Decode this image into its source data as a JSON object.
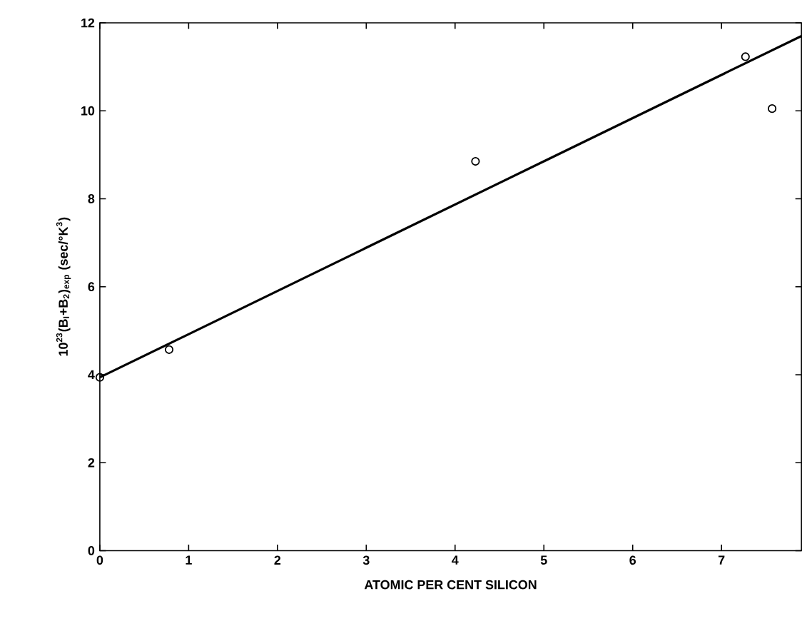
{
  "chart_data": {
    "type": "scatter",
    "xlabel": "ATOMIC PER CENT SILICON",
    "ylabel": "10$^{23}$(B$_{I}$+B$_{2}$)$_{exp}$  (sec/°K$^{3}$)",
    "xlim": [
      0,
      7.9
    ],
    "ylim": [
      0,
      12
    ],
    "xticks": [
      0,
      1,
      2,
      3,
      4,
      5,
      6,
      7
    ],
    "yticks": [
      0,
      2,
      4,
      6,
      8,
      10,
      12
    ],
    "series": [
      {
        "marker": "circle",
        "color": "#000000",
        "x": [
          0,
          0.78,
          4.23,
          7.27,
          7.57
        ],
        "values": [
          3.94,
          4.57,
          8.85,
          11.23,
          10.05
        ]
      },
      {
        "type": "line",
        "marker": "none",
        "line_style": "solid",
        "color": "#000000",
        "x": [
          0,
          7.9
        ],
        "values": [
          3.94,
          11.7
        ]
      }
    ]
  }
}
